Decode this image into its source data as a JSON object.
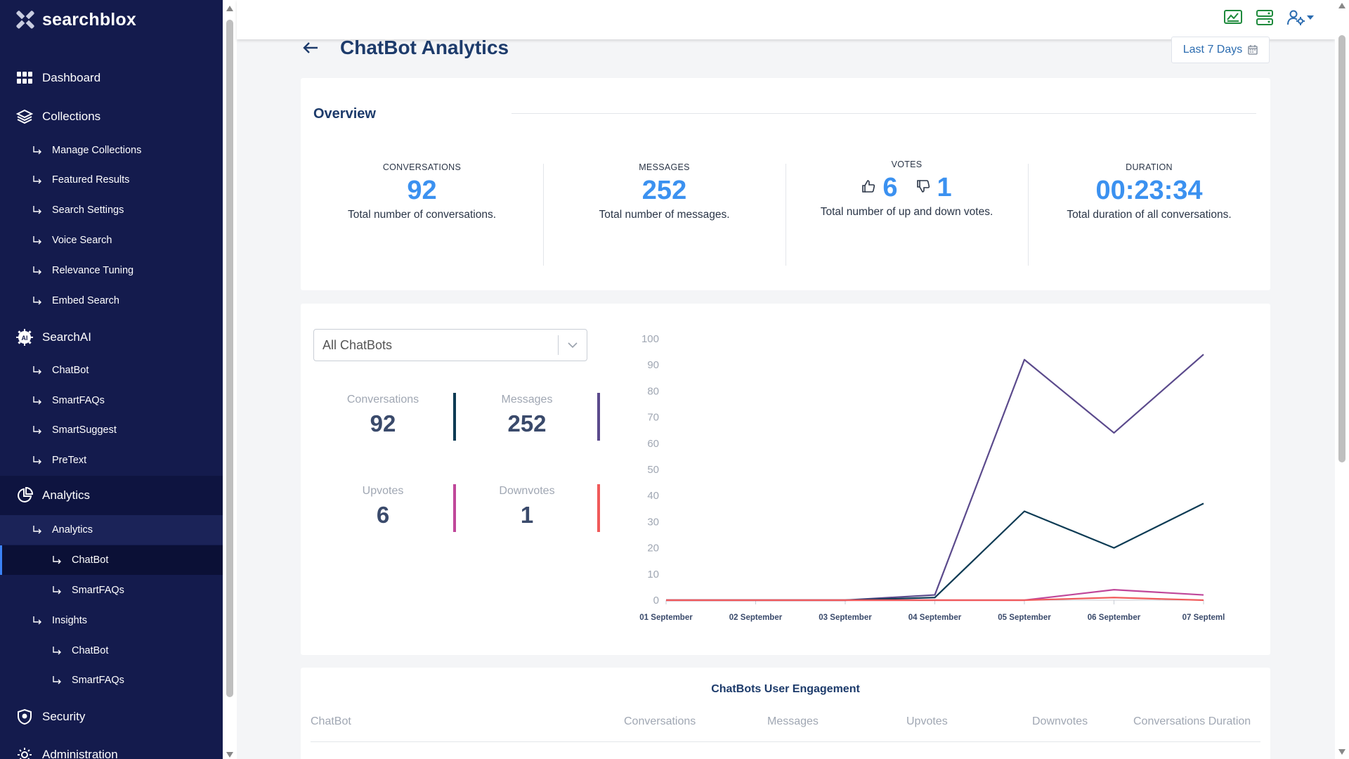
{
  "brand": {
    "name": "searchblox"
  },
  "sidebar": {
    "dashboard": "Dashboard",
    "collections": "Collections",
    "collection_items": [
      "Manage Collections",
      "Featured Results",
      "Search Settings",
      "Voice Search",
      "Relevance Tuning",
      "Embed Search"
    ],
    "searchai": "SearchAI",
    "searchai_items": [
      "ChatBot",
      "SmartFAQs",
      "SmartSuggest",
      "PreText"
    ],
    "analytics": "Analytics",
    "analytics_sub": "Analytics",
    "analytics_leaves": [
      "ChatBot",
      "SmartFAQs"
    ],
    "insights": "Insights",
    "insights_leaves": [
      "ChatBot",
      "SmartFAQs"
    ],
    "security": "Security",
    "administration": "Administration"
  },
  "header": {
    "title": "ChatBot Analytics",
    "date_range": "Last 7 Days"
  },
  "overview": {
    "title": "Overview",
    "conversations": {
      "label": "CONVERSATIONS",
      "value": "92",
      "desc": "Total number of conversations."
    },
    "messages": {
      "label": "MESSAGES",
      "value": "252",
      "desc": "Total number of messages."
    },
    "votes": {
      "label": "VOTES",
      "up": "6",
      "down": "1",
      "desc": "Total number of up and down votes."
    },
    "duration": {
      "label": "DURATION",
      "value": "00:23:34",
      "desc": "Total duration of all conversations."
    }
  },
  "filter": {
    "selected": "All ChatBots"
  },
  "mini_stats": {
    "conversations": {
      "label": "Conversations",
      "value": "92"
    },
    "messages": {
      "label": "Messages",
      "value": "252"
    },
    "upvotes": {
      "label": "Upvotes",
      "value": "6"
    },
    "downvotes": {
      "label": "Downvotes",
      "value": "1"
    }
  },
  "colors": {
    "conversations": "#0d3b54",
    "messages": "#5b4a8c",
    "upvotes": "#c0479a",
    "downvotes": "#f05a5a",
    "accent": "#3b91f0"
  },
  "chart_data": {
    "type": "line",
    "x": [
      "01 September",
      "02 September",
      "03 September",
      "04 September",
      "05 September",
      "06 September",
      "07 Septeml"
    ],
    "ylim": [
      0,
      100
    ],
    "yticks": [
      0,
      10,
      20,
      30,
      40,
      50,
      60,
      70,
      80,
      90,
      100
    ],
    "series": [
      {
        "key": "messages",
        "values": [
          0,
          0,
          0,
          2,
          92,
          64,
          94
        ]
      },
      {
        "key": "conversations",
        "values": [
          0,
          0,
          0,
          1,
          34,
          20,
          37
        ]
      },
      {
        "key": "upvotes",
        "values": [
          0,
          0,
          0,
          0,
          0,
          4,
          2
        ]
      },
      {
        "key": "downvotes",
        "values": [
          0,
          0,
          0,
          0,
          0,
          1,
          0
        ]
      }
    ]
  },
  "table": {
    "title": "ChatBots User Engagement",
    "headers": [
      "ChatBot",
      "Conversations",
      "Messages",
      "Upvotes",
      "Downvotes",
      "Conversations Duration"
    ]
  }
}
